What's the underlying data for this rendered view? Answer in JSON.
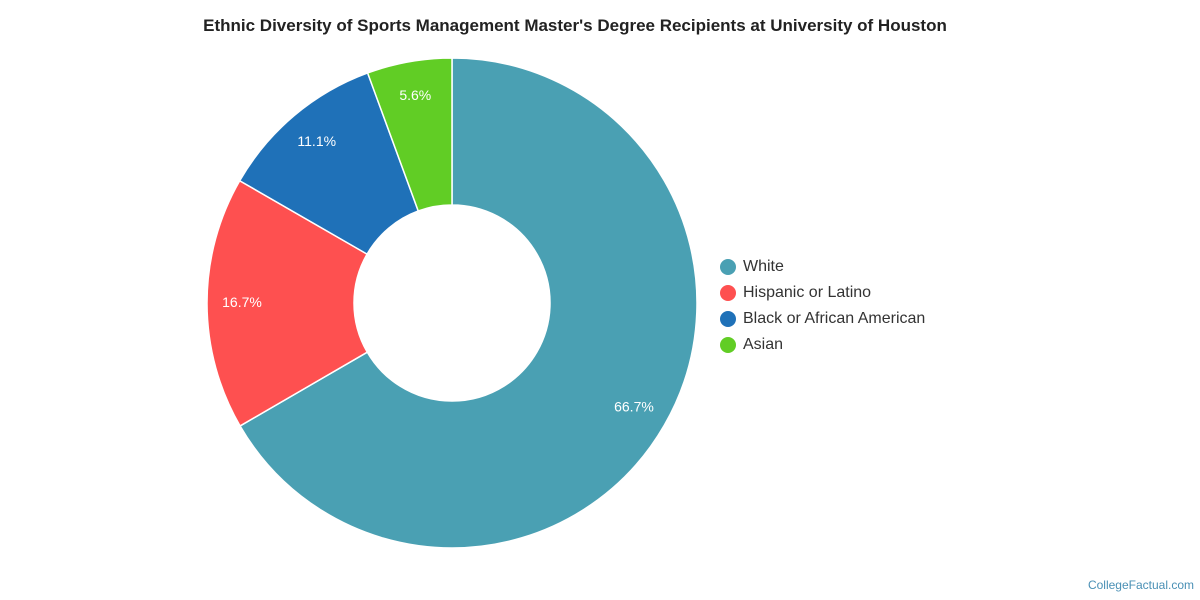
{
  "chart_data": {
    "type": "pie",
    "variant": "donut",
    "title": "Ethnic Diversity of Sports Management Master's Degree Recipients at University of Houston",
    "categories": [
      "White",
      "Hispanic or Latino",
      "Black or African American",
      "Asian"
    ],
    "values": [
      66.7,
      16.7,
      11.1,
      5.6
    ],
    "data_labels": [
      "66.7%",
      "16.7%",
      "11.1%",
      "5.6%"
    ],
    "colors": [
      "#4aa0b3",
      "#fe5050",
      "#1f71b8",
      "#61cd25"
    ],
    "legend_position": "right"
  },
  "credit": "CollegeFactual.com"
}
